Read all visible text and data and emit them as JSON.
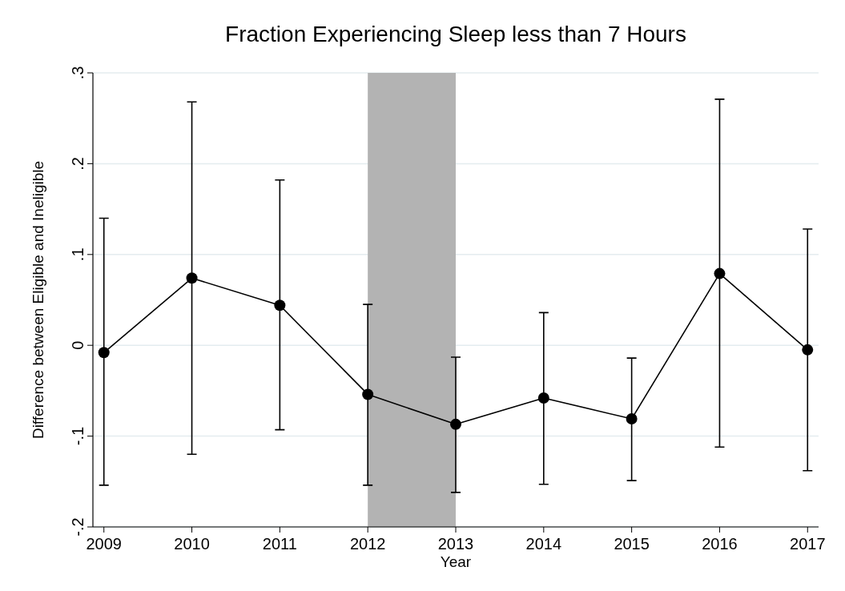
{
  "chart_data": {
    "type": "line",
    "title": "Fraction Experiencing Sleep less than 7 Hours",
    "xlabel": "Year",
    "ylabel": "Difference between Eligible and Ineligible",
    "x": [
      2009,
      2010,
      2011,
      2012,
      2013,
      2014,
      2015,
      2016,
      2017
    ],
    "series": [
      {
        "color": "#000000",
        "values": [
          -0.008,
          0.074,
          0.044,
          -0.054,
          -0.087,
          -0.058,
          -0.081,
          0.079,
          -0.005
        ],
        "errors": [
          [
            -0.154,
            0.14
          ],
          [
            -0.12,
            0.268
          ],
          [
            -0.093,
            0.182
          ],
          [
            -0.154,
            0.045
          ],
          [
            -0.162,
            -0.013
          ],
          [
            -0.153,
            0.036
          ],
          [
            -0.149,
            -0.014
          ],
          [
            -0.112,
            0.271
          ],
          [
            -0.138,
            0.128
          ]
        ]
      }
    ],
    "xlim": [
      2008.875,
      2017.125
    ],
    "xticks": [
      2009,
      2010,
      2011,
      2012,
      2013,
      2014,
      2015,
      2016,
      2017
    ],
    "ylim": [
      -0.2,
      0.3
    ],
    "yticks": [
      {
        "value": -0.2,
        "label": "-.2"
      },
      {
        "value": -0.1,
        "label": "-.1"
      },
      {
        "value": 0,
        "label": "0"
      },
      {
        "value": 0.1,
        "label": ".1"
      },
      {
        "value": 0.2,
        "label": ".2"
      },
      {
        "value": 0.3,
        "label": ".3"
      }
    ],
    "bands": [
      {
        "axis": "x",
        "from": 2012,
        "to": 2013,
        "color": "#b3b3b3"
      }
    ],
    "grid": "y",
    "marker": "circle",
    "line_style": "solid"
  }
}
